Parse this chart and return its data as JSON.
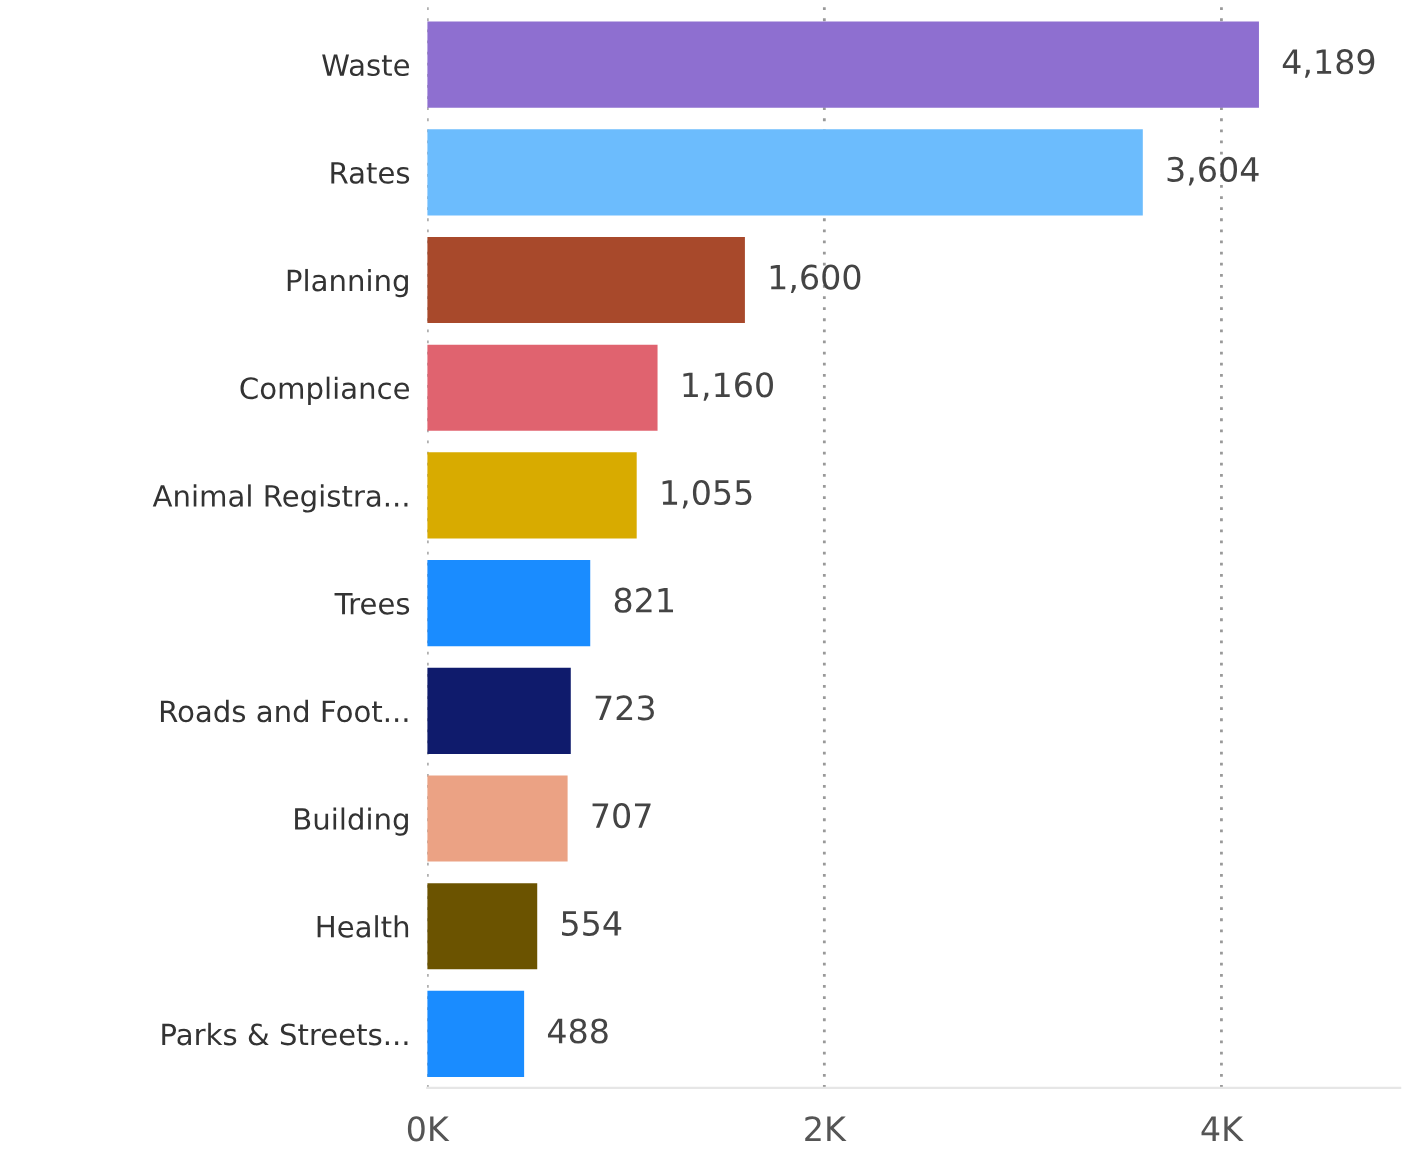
{
  "chart_data": {
    "type": "bar",
    "orientation": "horizontal",
    "categories": [
      "Waste",
      "Rates",
      "Planning",
      "Compliance",
      "Animal Registra...",
      "Trees",
      "Roads and Foot...",
      "Building",
      "Health",
      "Parks & Streets..."
    ],
    "values": [
      4189,
      3604,
      1600,
      1160,
      1055,
      821,
      723,
      707,
      554,
      488
    ],
    "colors": [
      "#8e6fd0",
      "#6cbcfd",
      "#a8492b",
      "#e0636f",
      "#d8ab00",
      "#1a8cff",
      "#0f1b6c",
      "#eba284",
      "#6b5300",
      "#1a8cff"
    ],
    "value_labels": [
      "4,189",
      "3,604",
      "1,600",
      "1,160",
      "1,055",
      "821",
      "723",
      "707",
      "554",
      "488"
    ],
    "xlim": [
      0,
      4900
    ],
    "xticks": [
      {
        "value": 0,
        "label": "0K"
      },
      {
        "value": 2000,
        "label": "2K"
      },
      {
        "value": 4000,
        "label": "4K"
      }
    ],
    "grid": "x",
    "legend": false
  }
}
